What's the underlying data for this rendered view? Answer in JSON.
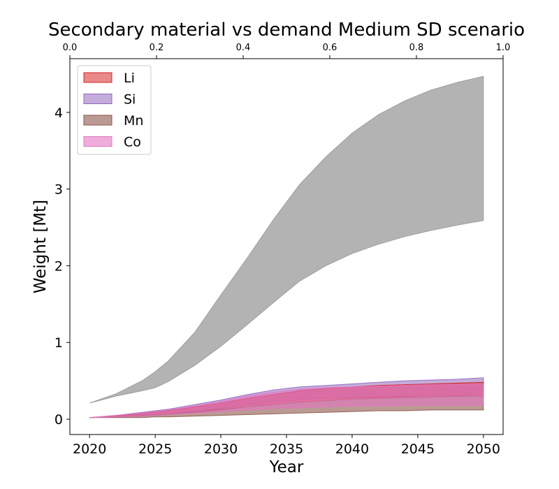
{
  "chart_data": {
    "type": "area",
    "title": "Secondary material vs demand Medium SD scenario",
    "xlabel": "Year",
    "ylabel": "Weight [Mt]",
    "xlim": [
      2018.5,
      2051.5
    ],
    "ylim": [
      -0.2,
      4.7
    ],
    "x_ticks": [
      "2020",
      "2025",
      "2030",
      "2035",
      "2040",
      "2045",
      "2050"
    ],
    "y_ticks": [
      "0",
      "1",
      "2",
      "3",
      "4"
    ],
    "top_axis_ticks": [
      "0.0",
      "0.2",
      "0.4",
      "0.6",
      "0.8",
      "1.0"
    ],
    "legend_position": "upper-left",
    "x": [
      2020,
      2022,
      2024,
      2025,
      2026,
      2028,
      2030,
      2032,
      2034,
      2036,
      2038,
      2040,
      2042,
      2044,
      2046,
      2048,
      2050
    ],
    "series": [
      {
        "name": "",
        "color": "#999999",
        "opacity": 0.75,
        "lower": [
          0.21,
          0.3,
          0.37,
          0.41,
          0.49,
          0.7,
          0.95,
          1.23,
          1.52,
          1.8,
          2.0,
          2.16,
          2.28,
          2.38,
          2.46,
          2.53,
          2.59
        ],
        "upper": [
          0.21,
          0.33,
          0.5,
          0.62,
          0.76,
          1.13,
          1.62,
          2.1,
          2.6,
          3.06,
          3.42,
          3.73,
          3.97,
          4.15,
          4.29,
          4.39,
          4.47
        ]
      },
      {
        "name": "Si",
        "color": "#9467bd",
        "opacity": 0.55,
        "lower": [
          0.02,
          0.03,
          0.05,
          0.06,
          0.07,
          0.1,
          0.14,
          0.18,
          0.22,
          0.25,
          0.27,
          0.28,
          0.29,
          0.3,
          0.31,
          0.31,
          0.32
        ],
        "upper": [
          0.02,
          0.05,
          0.09,
          0.11,
          0.13,
          0.19,
          0.25,
          0.32,
          0.38,
          0.42,
          0.44,
          0.46,
          0.48,
          0.5,
          0.51,
          0.52,
          0.54
        ]
      },
      {
        "name": "Li",
        "color": "#d62728",
        "opacity": 0.55,
        "lower": [
          0.02,
          0.03,
          0.04,
          0.05,
          0.06,
          0.09,
          0.12,
          0.16,
          0.2,
          0.23,
          0.25,
          0.27,
          0.28,
          0.29,
          0.29,
          0.3,
          0.3
        ],
        "upper": [
          0.02,
          0.04,
          0.07,
          0.09,
          0.11,
          0.16,
          0.21,
          0.27,
          0.32,
          0.37,
          0.4,
          0.42,
          0.44,
          0.45,
          0.46,
          0.47,
          0.48
        ]
      },
      {
        "name": "Mn",
        "color": "#8c564b",
        "opacity": 0.6,
        "lower": [
          0.02,
          0.02,
          0.02,
          0.03,
          0.03,
          0.04,
          0.05,
          0.06,
          0.07,
          0.08,
          0.09,
          0.1,
          0.11,
          0.11,
          0.12,
          0.12,
          0.12
        ],
        "upper": [
          0.02,
          0.03,
          0.05,
          0.06,
          0.07,
          0.1,
          0.13,
          0.16,
          0.19,
          0.22,
          0.24,
          0.26,
          0.27,
          0.28,
          0.29,
          0.3,
          0.3
        ]
      },
      {
        "name": "Co",
        "color": "#e377c2",
        "opacity": 0.6,
        "lower": [
          0.02,
          0.03,
          0.04,
          0.05,
          0.06,
          0.08,
          0.1,
          0.12,
          0.14,
          0.15,
          0.16,
          0.17,
          0.17,
          0.18,
          0.18,
          0.18,
          0.18
        ],
        "upper": [
          0.02,
          0.05,
          0.08,
          0.1,
          0.12,
          0.17,
          0.23,
          0.3,
          0.35,
          0.39,
          0.41,
          0.42,
          0.43,
          0.44,
          0.45,
          0.45,
          0.46
        ]
      }
    ]
  }
}
